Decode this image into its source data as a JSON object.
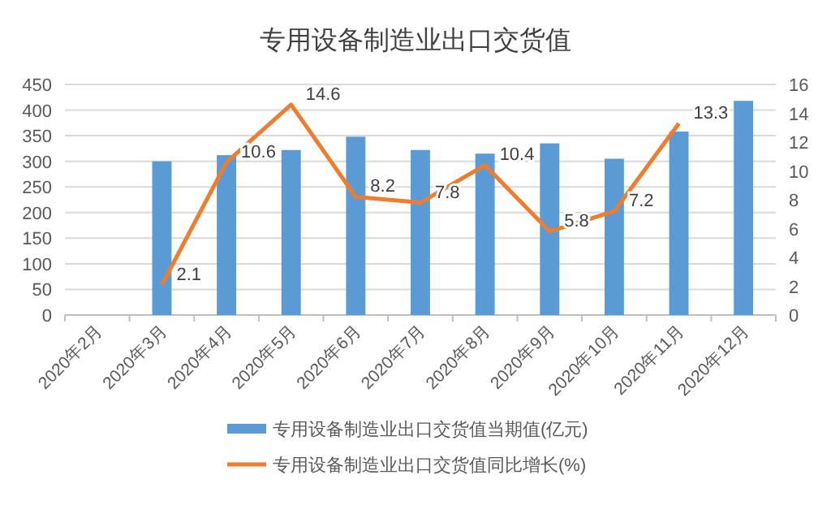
{
  "chart_data": {
    "type": "bar",
    "title": "专用设备制造业出口交货值",
    "categories": [
      "2020年2月",
      "2020年3月",
      "2020年4月",
      "2020年5月",
      "2020年6月",
      "2020年7月",
      "2020年8月",
      "2020年9月",
      "2020年10月",
      "2020年11月",
      "2020年12月"
    ],
    "series": [
      {
        "name": "专用设备制造业出口交货值当期值(亿元)",
        "color": "#5b9bd5",
        "values": [
          null,
          300,
          312,
          322,
          348,
          322,
          315,
          335,
          305,
          358,
          418
        ]
      },
      {
        "name": "专用设备制造业出口交货值同比增长(%)",
        "type": "line",
        "axis": "y2",
        "color": "#ed7d31",
        "values": [
          null,
          2.1,
          10.6,
          14.6,
          8.2,
          7.8,
          10.4,
          5.8,
          7.2,
          13.3,
          null
        ],
        "value_labels": [
          null,
          "2.1",
          "10.6",
          "14.6",
          "8.2",
          "7.8",
          "10.4",
          "5.8",
          "7.2",
          "13.3",
          null
        ]
      }
    ],
    "ylim": [
      0,
      450
    ],
    "yticks": [
      0,
      50,
      100,
      150,
      200,
      250,
      300,
      350,
      400,
      450
    ],
    "y2lim": [
      0,
      16
    ],
    "y2ticks": [
      0,
      2,
      4,
      6,
      8,
      10,
      12,
      14,
      16
    ],
    "grid": "y",
    "legend": "bottom"
  }
}
